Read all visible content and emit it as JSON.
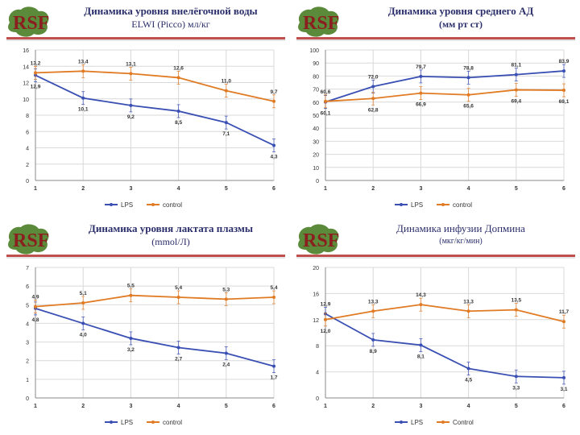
{
  "colors": {
    "lps": "#3a4fb3",
    "control": "#e07b24",
    "title": "#2b2f6b",
    "rule": "#c0504d",
    "grid": "#d9d9d9"
  },
  "logo_text": "RSF",
  "chart_data": [
    {
      "type": "line",
      "title": "Динамика уровня внелёгочной воды",
      "subtitle": "ELWI (Picco) мл/кг",
      "categories": [
        "1",
        "2",
        "3",
        "4",
        "5",
        "6"
      ],
      "ylim": [
        0,
        16
      ],
      "yticks": [
        "0",
        "2",
        "4",
        "6",
        "8",
        "10",
        "12",
        "14",
        "16"
      ],
      "series": [
        {
          "name": "LPS",
          "values": [
            12.9,
            10.1,
            9.2,
            8.5,
            7.1,
            4.3
          ],
          "labels": [
            "12,9",
            "10,1",
            "9,2",
            "8,5",
            "7,1",
            "4,3"
          ]
        },
        {
          "name": "control",
          "values": [
            13.2,
            13.4,
            13.1,
            12.6,
            11.0,
            9.7
          ],
          "labels": [
            "13,2",
            "13,4",
            "13,1",
            "12,6",
            "11,0",
            "9,7"
          ]
        }
      ],
      "legend": [
        "LPS",
        "control"
      ]
    },
    {
      "type": "line",
      "title": "Динамика уровня среднего АД",
      "subtitle": "(мм рт ст)",
      "categories": [
        "1",
        "2",
        "3",
        "4",
        "5",
        "6"
      ],
      "ylim": [
        0,
        100
      ],
      "yticks": [
        "0",
        "10",
        "20",
        "30",
        "40",
        "50",
        "60",
        "70",
        "80",
        "90",
        "100"
      ],
      "series": [
        {
          "name": "LPS",
          "values": [
            60.1,
            72.0,
            79.7,
            78.8,
            81.1,
            83.9
          ],
          "labels": [
            "60,1",
            "72,0",
            "79,7",
            "78,8",
            "81,1",
            "83,9"
          ]
        },
        {
          "name": "control",
          "values": [
            60.6,
            62.8,
            66.9,
            65.6,
            69.4,
            69.1
          ],
          "labels": [
            "60,6",
            "62,8",
            "66,9",
            "65,6",
            "69,4",
            "69,1"
          ]
        }
      ],
      "legend": [
        "LPS",
        "control"
      ]
    },
    {
      "type": "line",
      "title": "Динамика уровня лактата плазмы",
      "subtitle": "(mmol/Л)",
      "categories": [
        "1",
        "2",
        "3",
        "4",
        "5",
        "6"
      ],
      "ylim": [
        0,
        7
      ],
      "yticks": [
        "0",
        "1",
        "2",
        "3",
        "4",
        "5",
        "6",
        "7"
      ],
      "series": [
        {
          "name": "LPS",
          "values": [
            4.8,
            4.0,
            3.2,
            2.7,
            2.4,
            1.7
          ],
          "labels": [
            "4,8",
            "4,0",
            "3,2",
            "2,7",
            "2,4",
            "1,7"
          ]
        },
        {
          "name": "control",
          "values": [
            4.9,
            5.1,
            5.5,
            5.4,
            5.3,
            5.4
          ],
          "labels": [
            "4,9",
            "5,1",
            "5,5",
            "5,4",
            "5,3",
            "5,4"
          ]
        }
      ],
      "legend": [
        "LPS",
        "control"
      ]
    },
    {
      "type": "line",
      "title": "Динамика инфузии Допмина",
      "subtitle": "(мкг/кг/мин)",
      "categories": [
        "1",
        "2",
        "3",
        "4",
        "5",
        "6"
      ],
      "ylim": [
        0,
        20
      ],
      "yticks": [
        "0",
        "4",
        "8",
        "12",
        "16",
        "20"
      ],
      "series": [
        {
          "name": "LPS",
          "values": [
            12.9,
            8.9,
            8.1,
            4.5,
            3.3,
            3.1
          ],
          "labels": [
            "12,9",
            "8,9",
            "8,1",
            "4,5",
            "3,3",
            "3,1"
          ]
        },
        {
          "name": "Control",
          "values": [
            12.0,
            13.3,
            14.3,
            13.3,
            13.5,
            11.7
          ],
          "labels": [
            "12,0",
            "13,3",
            "14,3",
            "13,3",
            "13,5",
            "11,7"
          ]
        }
      ],
      "legend": [
        "LPS",
        "Control"
      ]
    }
  ]
}
